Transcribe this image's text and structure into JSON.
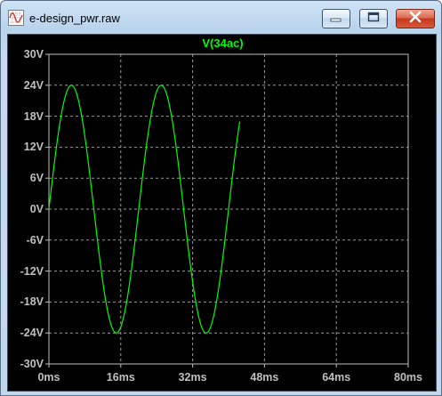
{
  "window": {
    "title": "e-design_pwr.raw",
    "icons": {
      "app": "waveform-icon",
      "minimize": "minimize-icon",
      "maximize": "maximize-icon",
      "close": "close-icon"
    }
  },
  "colors": {
    "trace": "#00ff00",
    "background": "#000000",
    "grid": "#9a9a9a",
    "axis": "#c0c0c0",
    "close_button": "#c6381c"
  },
  "chart_data": {
    "type": "line",
    "title": "V(34ac)",
    "xlabel": "",
    "ylabel": "",
    "xlim": [
      0,
      80
    ],
    "ylim": [
      -30,
      30
    ],
    "x_unit": "ms",
    "y_unit": "V",
    "grid": true,
    "x_tick_labels": [
      "0ms",
      "16ms",
      "32ms",
      "48ms",
      "64ms",
      "80ms"
    ],
    "y_tick_labels": [
      "30V",
      "24V",
      "18V",
      "12V",
      "6V",
      "0V",
      "-6V",
      "-12V",
      "-18V",
      "-24V",
      "-30V"
    ],
    "series": [
      {
        "name": "V(34ac)",
        "color": "#00ff00",
        "waveform": "sine",
        "amplitude": 24,
        "frequency_hz": 50,
        "x_start": 0,
        "x_end": 42.5,
        "x": [
          0,
          2.5,
          5,
          7.5,
          10,
          12.5,
          15,
          17.5,
          20,
          22.5,
          25,
          27.5,
          30,
          32.5,
          35,
          37.5,
          40,
          42.5
        ],
        "y": [
          0,
          17,
          24,
          17,
          0,
          -17,
          -24,
          -17,
          0,
          17,
          24,
          17,
          0,
          -17,
          -24,
          -17,
          0,
          17
        ]
      }
    ]
  }
}
